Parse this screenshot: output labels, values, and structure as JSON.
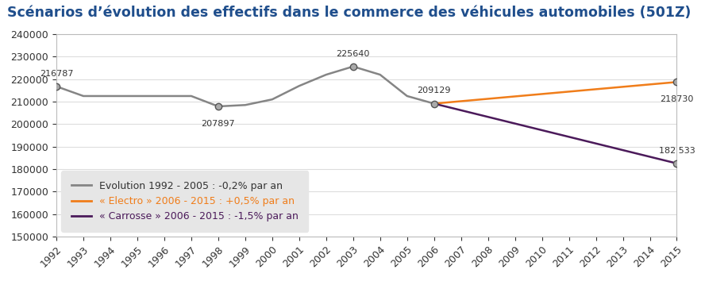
{
  "chart_data": {
    "type": "line",
    "title": "Scénarios d’évolution des effectifs dans le commerce des véhicules automobiles (501Z)",
    "series": [
      {
        "name": "Evolution 1992 - 2005 : -0,2% par an",
        "color": "#858585",
        "x": [
          1992,
          1993,
          1994,
          1995,
          1996,
          1997,
          1998,
          1999,
          2000,
          2001,
          2002,
          2003,
          2004,
          2005,
          2006
        ],
        "values": [
          216787,
          212500,
          212500,
          212500,
          212500,
          212500,
          207897,
          208500,
          211000,
          217000,
          222000,
          225640,
          222000,
          212500,
          209129
        ],
        "value_labels": [
          "216787",
          null,
          null,
          null,
          null,
          null,
          "207897",
          null,
          null,
          null,
          null,
          "225640",
          null,
          null,
          "209129"
        ]
      },
      {
        "name": "« Electro » 2006 - 2015 : +0,5% par an",
        "color": "#f07d1a",
        "x": [
          2006,
          2015
        ],
        "values": [
          209129,
          218730
        ],
        "value_labels": [
          null,
          "218730"
        ]
      },
      {
        "name": "« Carrosse » 2006 - 2015 : -1,5% par an",
        "color": "#4b1a5a",
        "x": [
          2006,
          2015
        ],
        "values": [
          209129,
          182533
        ],
        "value_labels": [
          null,
          "182 533"
        ]
      }
    ],
    "xlim": [
      1992,
      2015
    ],
    "xticks": [
      1992,
      1993,
      1994,
      1995,
      1996,
      1997,
      1998,
      1999,
      2000,
      2001,
      2002,
      2003,
      2004,
      2005,
      2006,
      2007,
      2008,
      2009,
      2010,
      2011,
      2012,
      2013,
      2014,
      2015
    ],
    "ylim": [
      150000,
      240000
    ],
    "yticks": [
      150000,
      160000,
      170000,
      180000,
      190000,
      200000,
      210000,
      220000,
      230000,
      240000
    ],
    "grid": true,
    "legend": "lower left",
    "data_labels": true
  }
}
